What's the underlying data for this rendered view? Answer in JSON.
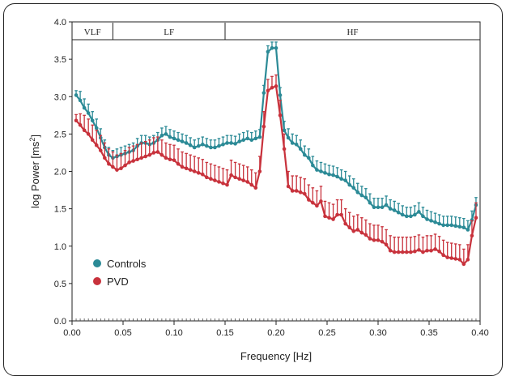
{
  "chart_data": {
    "type": "line",
    "xlabel": "Frequency [Hz]",
    "ylabel": "log Power [ms",
    "ylabel_superscript": "2",
    "ylabel_suffix": "]",
    "xlim": [
      0,
      0.4
    ],
    "ylim": [
      0,
      4.0
    ],
    "x_ticks": [
      "0.00",
      "0.05",
      "0.10",
      "0.15",
      "0.20",
      "0.25",
      "0.30",
      "0.35",
      "0.40"
    ],
    "y_ticks": [
      "0.0",
      "0.5",
      "1.0",
      "1.5",
      "2.0",
      "2.5",
      "3.0",
      "3.5",
      "4.0"
    ],
    "bands": [
      {
        "label": "VLF",
        "from": 0.0,
        "to": 0.04
      },
      {
        "label": "LF",
        "from": 0.04,
        "to": 0.15
      },
      {
        "label": "HF",
        "from": 0.15,
        "to": 0.4
      }
    ],
    "legend_position": "bottom-left",
    "x": [
      0.004,
      0.008,
      0.012,
      0.016,
      0.02,
      0.024,
      0.028,
      0.032,
      0.036,
      0.04,
      0.044,
      0.048,
      0.052,
      0.056,
      0.06,
      0.064,
      0.068,
      0.072,
      0.076,
      0.08,
      0.084,
      0.088,
      0.092,
      0.096,
      0.1,
      0.104,
      0.108,
      0.112,
      0.116,
      0.12,
      0.124,
      0.128,
      0.132,
      0.136,
      0.14,
      0.144,
      0.148,
      0.152,
      0.156,
      0.16,
      0.164,
      0.168,
      0.172,
      0.176,
      0.18,
      0.184,
      0.188,
      0.192,
      0.196,
      0.2,
      0.204,
      0.208,
      0.212,
      0.216,
      0.22,
      0.224,
      0.228,
      0.232,
      0.236,
      0.24,
      0.244,
      0.248,
      0.252,
      0.256,
      0.26,
      0.264,
      0.268,
      0.272,
      0.276,
      0.28,
      0.284,
      0.288,
      0.292,
      0.296,
      0.3,
      0.304,
      0.308,
      0.312,
      0.316,
      0.32,
      0.324,
      0.328,
      0.332,
      0.336,
      0.34,
      0.344,
      0.348,
      0.352,
      0.356,
      0.36,
      0.364,
      0.368,
      0.372,
      0.376,
      0.38,
      0.384,
      0.388,
      0.392,
      0.396
    ],
    "series": [
      {
        "name": "Controls",
        "color": "#2b8a96",
        "values": [
          3.02,
          2.95,
          2.85,
          2.78,
          2.68,
          2.58,
          2.45,
          2.32,
          2.22,
          2.18,
          2.2,
          2.22,
          2.24,
          2.26,
          2.28,
          2.34,
          2.38,
          2.38,
          2.36,
          2.38,
          2.42,
          2.48,
          2.5,
          2.46,
          2.44,
          2.42,
          2.4,
          2.38,
          2.35,
          2.32,
          2.34,
          2.36,
          2.34,
          2.32,
          2.32,
          2.34,
          2.36,
          2.38,
          2.38,
          2.37,
          2.4,
          2.42,
          2.44,
          2.42,
          2.44,
          2.46,
          3.05,
          3.6,
          3.65,
          3.65,
          3.02,
          2.55,
          2.45,
          2.38,
          2.36,
          2.3,
          2.22,
          2.18,
          2.08,
          2.02,
          2.0,
          1.98,
          1.96,
          1.95,
          1.93,
          1.9,
          1.88,
          1.82,
          1.78,
          1.72,
          1.68,
          1.65,
          1.58,
          1.52,
          1.52,
          1.52,
          1.55,
          1.5,
          1.48,
          1.45,
          1.42,
          1.4,
          1.4,
          1.42,
          1.46,
          1.4,
          1.36,
          1.34,
          1.32,
          1.3,
          1.28,
          1.28,
          1.28,
          1.27,
          1.26,
          1.25,
          1.22,
          1.35,
          1.55
        ],
        "errors": [
          0.06,
          0.12,
          0.12,
          0.12,
          0.12,
          0.12,
          0.12,
          0.1,
          0.1,
          0.1,
          0.1,
          0.1,
          0.1,
          0.1,
          0.1,
          0.1,
          0.1,
          0.1,
          0.1,
          0.1,
          0.1,
          0.1,
          0.1,
          0.1,
          0.1,
          0.1,
          0.1,
          0.1,
          0.1,
          0.1,
          0.1,
          0.1,
          0.1,
          0.1,
          0.1,
          0.1,
          0.1,
          0.1,
          0.1,
          0.1,
          0.1,
          0.1,
          0.1,
          0.1,
          0.1,
          0.1,
          0.1,
          0.08,
          0.08,
          0.08,
          0.1,
          0.12,
          0.12,
          0.12,
          0.12,
          0.12,
          0.12,
          0.12,
          0.12,
          0.12,
          0.12,
          0.12,
          0.12,
          0.12,
          0.12,
          0.12,
          0.12,
          0.12,
          0.12,
          0.12,
          0.12,
          0.12,
          0.12,
          0.12,
          0.12,
          0.12,
          0.12,
          0.12,
          0.12,
          0.12,
          0.12,
          0.12,
          0.12,
          0.12,
          0.12,
          0.12,
          0.12,
          0.12,
          0.12,
          0.12,
          0.12,
          0.12,
          0.12,
          0.12,
          0.12,
          0.12,
          0.12,
          0.12,
          0.1
        ]
      },
      {
        "name": "PVD",
        "color": "#c8323c",
        "values": [
          2.68,
          2.62,
          2.55,
          2.5,
          2.42,
          2.35,
          2.28,
          2.18,
          2.1,
          2.06,
          2.02,
          2.04,
          2.08,
          2.12,
          2.14,
          2.16,
          2.18,
          2.2,
          2.22,
          2.25,
          2.26,
          2.22,
          2.18,
          2.16,
          2.15,
          2.1,
          2.06,
          2.04,
          2.02,
          2.0,
          1.98,
          1.96,
          1.92,
          1.9,
          1.88,
          1.86,
          1.84,
          1.82,
          1.95,
          1.92,
          1.9,
          1.88,
          1.86,
          1.82,
          1.78,
          2.0,
          2.6,
          3.08,
          3.12,
          3.14,
          2.75,
          2.3,
          1.8,
          1.74,
          1.74,
          1.72,
          1.7,
          1.62,
          1.58,
          1.54,
          1.6,
          1.4,
          1.38,
          1.36,
          1.42,
          1.42,
          1.3,
          1.25,
          1.2,
          1.22,
          1.18,
          1.15,
          1.1,
          1.08,
          1.08,
          1.06,
          1.02,
          0.94,
          0.92,
          0.92,
          0.92,
          0.92,
          0.92,
          0.93,
          0.95,
          0.92,
          0.94,
          0.94,
          0.96,
          0.93,
          0.88,
          0.85,
          0.84,
          0.83,
          0.82,
          0.76,
          0.82,
          1.14,
          1.38
        ],
        "errors": [
          0.08,
          0.15,
          0.2,
          0.2,
          0.2,
          0.2,
          0.2,
          0.2,
          0.2,
          0.2,
          0.2,
          0.2,
          0.2,
          0.2,
          0.2,
          0.2,
          0.2,
          0.2,
          0.2,
          0.2,
          0.2,
          0.2,
          0.2,
          0.2,
          0.2,
          0.2,
          0.2,
          0.2,
          0.2,
          0.2,
          0.2,
          0.2,
          0.2,
          0.2,
          0.2,
          0.2,
          0.2,
          0.2,
          0.2,
          0.2,
          0.2,
          0.2,
          0.2,
          0.2,
          0.2,
          0.2,
          0.2,
          0.15,
          0.15,
          0.15,
          0.2,
          0.2,
          0.2,
          0.2,
          0.2,
          0.2,
          0.2,
          0.2,
          0.2,
          0.2,
          0.2,
          0.2,
          0.2,
          0.2,
          0.2,
          0.2,
          0.2,
          0.2,
          0.2,
          0.2,
          0.2,
          0.2,
          0.2,
          0.2,
          0.2,
          0.2,
          0.2,
          0.2,
          0.2,
          0.2,
          0.2,
          0.2,
          0.2,
          0.2,
          0.2,
          0.2,
          0.2,
          0.2,
          0.2,
          0.2,
          0.2,
          0.2,
          0.2,
          0.2,
          0.2,
          0.2,
          0.2,
          0.2,
          0.2
        ]
      }
    ]
  }
}
